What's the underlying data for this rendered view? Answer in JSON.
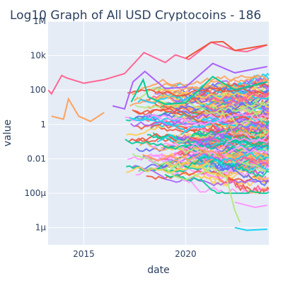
{
  "chart_data": {
    "type": "line",
    "title": "Log10 Graph of All USD Cryptocoins - 186",
    "xlabel": "date",
    "ylabel": "value",
    "y_scale": "log",
    "x_range": [
      "2013-04-01",
      "2024-02-01"
    ],
    "y_range": [
      1e-07,
      1000000.0
    ],
    "x_ticks": [
      {
        "label": "2015",
        "value": "2015-01-01"
      },
      {
        "label": "2020",
        "value": "2020-01-01"
      }
    ],
    "y_ticks": [
      {
        "label": "1M",
        "value": 1000000
      },
      {
        "label": "10k",
        "value": 10000
      },
      {
        "label": "100",
        "value": 100
      },
      {
        "label": "1",
        "value": 1
      },
      {
        "label": "0.01",
        "value": 0.01
      },
      {
        "label": "100μ",
        "value": 0.0001
      },
      {
        "label": "1μ",
        "value": 1e-06
      }
    ],
    "grid": true,
    "legend": "none",
    "plot_background": "#e5ecf6",
    "series_count": 186,
    "highlighted_series": [
      {
        "color": "#ff6692",
        "points": [
          [
            "2013-04-01",
            100
          ],
          [
            "2013-06-01",
            60
          ],
          [
            "2013-12-01",
            700
          ],
          [
            "2014-03-01",
            500
          ],
          [
            "2015-01-01",
            250
          ],
          [
            "2016-01-01",
            400
          ],
          [
            "2017-01-01",
            900
          ],
          [
            "2017-12-15",
            15000
          ],
          [
            "2019-01-01",
            4000
          ],
          [
            "2019-07-01",
            11000
          ],
          [
            "2020-03-01",
            6000
          ],
          [
            "2021-04-01",
            60000
          ],
          [
            "2022-06-01",
            20000
          ],
          [
            "2023-01-01",
            17000
          ],
          [
            "2024-01-01",
            42000
          ]
        ]
      },
      {
        "color": "#ffa15a",
        "points": [
          [
            "2013-06-01",
            3
          ],
          [
            "2014-01-01",
            2
          ],
          [
            "2014-04-01",
            30
          ],
          [
            "2014-10-01",
            3
          ],
          [
            "2015-05-01",
            1.5
          ],
          [
            "2016-01-01",
            5
          ]
        ]
      },
      {
        "color": "#ab63fa",
        "points": [
          [
            "2016-06-01",
            12
          ],
          [
            "2017-01-01",
            8
          ],
          [
            "2017-06-01",
            300
          ],
          [
            "2018-01-01",
            1200
          ],
          [
            "2019-01-01",
            120
          ],
          [
            "2020-01-01",
            150
          ],
          [
            "2021-05-01",
            3500
          ],
          [
            "2022-06-01",
            1000
          ],
          [
            "2024-01-01",
            2300
          ]
        ]
      },
      {
        "color": "#00cc96",
        "points": [
          [
            "2017-05-01",
            20
          ],
          [
            "2017-12-01",
            400
          ],
          [
            "2018-03-01",
            40
          ],
          [
            "2019-01-01",
            15
          ],
          [
            "2020-01-01",
            18
          ],
          [
            "2021-05-01",
            600
          ],
          [
            "2022-06-01",
            100
          ],
          [
            "2024-01-01",
            300
          ]
        ]
      },
      {
        "color": "#ef553b",
        "points": [
          [
            "2020-01-01",
            7000
          ],
          [
            "2021-04-01",
            60000
          ],
          [
            "2021-11-01",
            65000
          ],
          [
            "2022-06-01",
            20000
          ],
          [
            "2024-01-01",
            42000
          ]
        ]
      },
      {
        "color": "#b6e880",
        "points": [
          [
            "2019-01-01",
            0.003
          ],
          [
            "2019-06-01",
            0.001
          ],
          [
            "2020-01-01",
            0.0006
          ],
          [
            "2021-05-01",
            0.003
          ],
          [
            "2022-01-01",
            0.0008
          ],
          [
            "2022-06-01",
            1e-05
          ],
          [
            "2022-09-01",
            2e-06
          ]
        ]
      },
      {
        "color": "#19d3f3",
        "points": [
          [
            "2022-06-01",
            1e-06
          ],
          [
            "2023-01-01",
            7e-07
          ],
          [
            "2024-01-01",
            8e-07
          ]
        ]
      },
      {
        "color": "#ff97ff",
        "points": [
          [
            "2022-06-01",
            3e-05
          ],
          [
            "2023-06-01",
            1.5e-05
          ],
          [
            "2024-01-01",
            2e-05
          ]
        ]
      }
    ]
  }
}
